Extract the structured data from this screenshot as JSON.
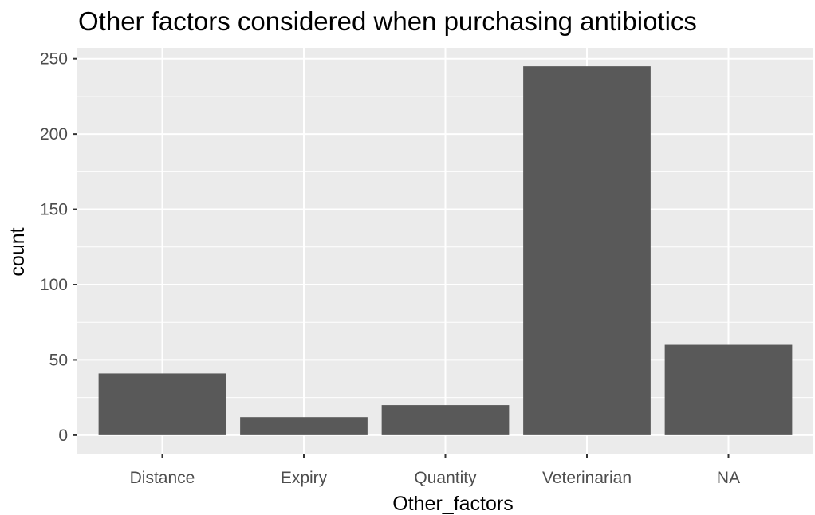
{
  "chart_data": {
    "type": "bar",
    "title": "Other factors considered when purchasing antibiotics",
    "xlabel": "Other_factors",
    "ylabel": "count",
    "categories": [
      "Distance",
      "Expiry",
      "Quantity",
      "Veterinarian",
      "NA"
    ],
    "values": [
      41,
      12,
      20,
      245,
      60
    ],
    "ylim": [
      -12.25,
      257.25
    ],
    "yticks": [
      0,
      50,
      100,
      150,
      200,
      250
    ],
    "grid": true,
    "legend": "none",
    "colors": {
      "panel": "#ebebeb",
      "grid_major": "#ffffff",
      "bar": "#595959"
    }
  }
}
